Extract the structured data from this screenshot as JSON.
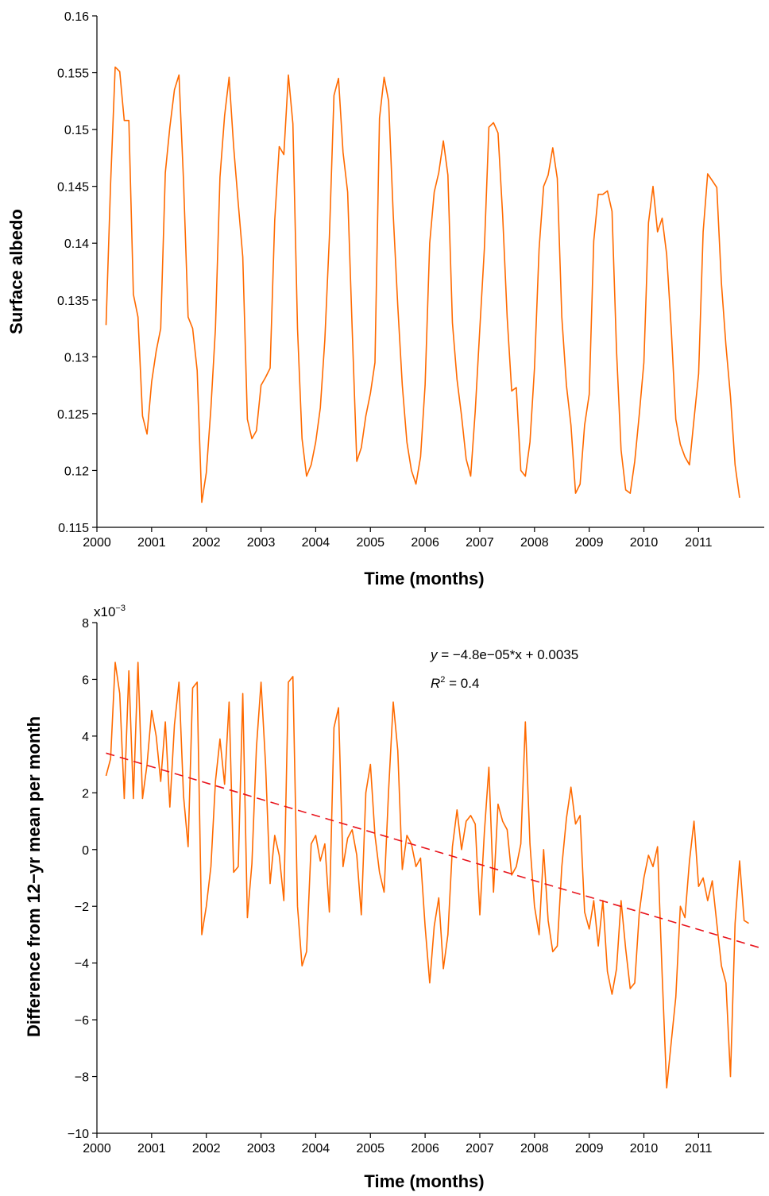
{
  "chart_data": [
    {
      "type": "line",
      "title": "",
      "xlabel": "Time (months)",
      "ylabel": "Surface albedo",
      "xlim": [
        2000.0,
        2012.2
      ],
      "ylim": [
        0.115,
        0.16
      ],
      "x_ticks": [
        2000,
        2001,
        2002,
        2003,
        2004,
        2005,
        2006,
        2007,
        2008,
        2009,
        2010,
        2011
      ],
      "x_tick_labels": [
        "2000",
        "2001",
        "2002",
        "2003",
        "2004",
        "2005",
        "2006",
        "2007",
        "2008",
        "2009",
        "2010",
        "2011"
      ],
      "y_ticks": [
        0.115,
        0.12,
        0.125,
        0.13,
        0.135,
        0.14,
        0.145,
        0.15,
        0.155,
        0.16
      ],
      "y_tick_labels": [
        "0.115",
        "0.12",
        "0.125",
        "0.13",
        "0.135",
        "0.14",
        "0.145",
        "0.15",
        "0.155",
        "0.16"
      ],
      "line_color": "#ff6a00",
      "series": [
        {
          "x_start": 2000.167,
          "x_step": 0.08333,
          "values": [
            0.1328,
            0.1452,
            0.1555,
            0.1551,
            0.1508,
            0.1508,
            0.1355,
            0.1335,
            0.1248,
            0.1232,
            0.1278,
            0.1305,
            0.1325,
            0.1462,
            0.1502,
            0.1535,
            0.1548,
            0.1455,
            0.1335,
            0.1325,
            0.1288,
            0.1172,
            0.1198,
            0.1255,
            0.1325,
            0.1458,
            0.1512,
            0.1546,
            0.1485,
            0.1435,
            0.1388,
            0.1245,
            0.1228,
            0.1235,
            0.1275,
            0.1282,
            0.129,
            0.142,
            0.1485,
            0.1478,
            0.1548,
            0.1505,
            0.1325,
            0.1228,
            0.1195,
            0.1205,
            0.1225,
            0.1255,
            0.1315,
            0.1405,
            0.153,
            0.1545,
            0.148,
            0.1445,
            0.1325,
            0.1208,
            0.122,
            0.1248,
            0.1268,
            0.1295,
            0.151,
            0.1546,
            0.1525,
            0.1425,
            0.1345,
            0.1275,
            0.1225,
            0.12,
            0.1188,
            0.1212,
            0.1275,
            0.14,
            0.1445,
            0.1462,
            0.149,
            0.146,
            0.133,
            0.128,
            0.1248,
            0.121,
            0.1195,
            0.1252,
            0.1325,
            0.1395,
            0.1502,
            0.1506,
            0.1497,
            0.1425,
            0.1335,
            0.127,
            0.1273,
            0.12,
            0.1195,
            0.1225,
            0.129,
            0.1395,
            0.145,
            0.146,
            0.1484,
            0.1457,
            0.1335,
            0.1275,
            0.124,
            0.118,
            0.1188,
            0.124,
            0.1267,
            0.1402,
            0.1443,
            0.1443,
            0.1446,
            0.1428,
            0.1305,
            0.1218,
            0.1183,
            0.118,
            0.1208,
            0.125,
            0.1295,
            0.1418,
            0.145,
            0.141,
            0.1422,
            0.139,
            0.1325,
            0.1245,
            0.1223,
            0.1212,
            0.1205,
            0.1245,
            0.1285,
            0.141,
            0.1461,
            0.1455,
            0.1449,
            0.1365,
            0.131,
            0.1265,
            0.1205,
            0.1176
          ]
        }
      ]
    },
    {
      "type": "line",
      "title": "",
      "xlabel": "Time (months)",
      "ylabel": "Difference from 12−yr mean per month",
      "xlim": [
        2000.0,
        2012.2
      ],
      "ylim": [
        -10,
        8
      ],
      "y_scale_label": "x10",
      "y_scale_exponent": "−3",
      "x_ticks": [
        2000,
        2001,
        2002,
        2003,
        2004,
        2005,
        2006,
        2007,
        2008,
        2009,
        2010,
        2011
      ],
      "x_tick_labels": [
        "2000",
        "2001",
        "2002",
        "2003",
        "2004",
        "2005",
        "2006",
        "2007",
        "2008",
        "2009",
        "2010",
        "2011"
      ],
      "y_ticks": [
        -10,
        -8,
        -6,
        -4,
        -2,
        0,
        2,
        4,
        6,
        8
      ],
      "y_tick_labels": [
        "−10",
        "−8",
        "−6",
        "−4",
        "−2",
        "0",
        "2",
        "4",
        "6",
        "8"
      ],
      "line_color": "#ff6a00",
      "trend_color": "#e8141c",
      "annotation_equation": {
        "var_y": "y",
        "rest": " = −4.8e−05*x + 0.0035"
      },
      "annotation_r2": {
        "var_r": "R",
        "power": "2",
        "rest": " = 0.4"
      },
      "series": [
        {
          "x_start": 2000.167,
          "x_step": 0.08333,
          "values": [
            2.6,
            3.2,
            6.6,
            5.5,
            1.8,
            6.3,
            1.8,
            6.6,
            1.8,
            3.0,
            4.9,
            4.0,
            2.4,
            4.5,
            1.5,
            4.4,
            5.9,
            1.9,
            0.1,
            5.7,
            5.9,
            -3.0,
            -2.0,
            -0.6,
            2.4,
            3.9,
            2.3,
            5.2,
            -0.8,
            -0.6,
            5.5,
            -2.4,
            -0.5,
            3.6,
            5.9,
            3.0,
            -1.2,
            0.5,
            -0.2,
            -1.8,
            5.9,
            6.1,
            -2.0,
            -4.1,
            -3.6,
            0.2,
            0.5,
            -0.4,
            0.2,
            -2.2,
            4.3,
            5.0,
            -0.6,
            0.4,
            0.7,
            -0.2,
            -2.3,
            2.0,
            3.0,
            0.5,
            -0.8,
            -1.5,
            2.1,
            5.2,
            3.5,
            -0.7,
            0.5,
            0.2,
            -0.6,
            -0.3,
            -2.7,
            -4.7,
            -2.7,
            -1.7,
            -4.2,
            -3.0,
            0.1,
            1.4,
            0.0,
            1.0,
            1.2,
            0.9,
            -2.3,
            0.6,
            2.9,
            -1.5,
            1.6,
            1.0,
            0.7,
            -0.9,
            -0.6,
            0.2,
            4.5,
            0.2,
            -2.0,
            -3.0,
            0.0,
            -2.5,
            -3.6,
            -3.4,
            -0.6,
            1.1,
            2.2,
            0.9,
            1.2,
            -2.2,
            -2.8,
            -1.8,
            -3.4,
            -1.8,
            -4.3,
            -5.1,
            -4.2,
            -1.8,
            -3.5,
            -4.9,
            -4.7,
            -2.2,
            -1.0,
            -0.2,
            -0.6,
            0.1,
            -4.4,
            -8.4,
            -6.8,
            -5.2,
            -2.0,
            -2.4,
            -0.4,
            1.0,
            -1.3,
            -1.0,
            -1.8,
            -1.1,
            -2.6,
            -4.1,
            -4.7,
            -8.0,
            -2.6,
            -0.4,
            -2.5,
            -2.6
          ]
        }
      ],
      "trend": {
        "x": [
          2000.167,
          2012.1
        ],
        "y": [
          3.4,
          -3.45
        ]
      }
    }
  ]
}
